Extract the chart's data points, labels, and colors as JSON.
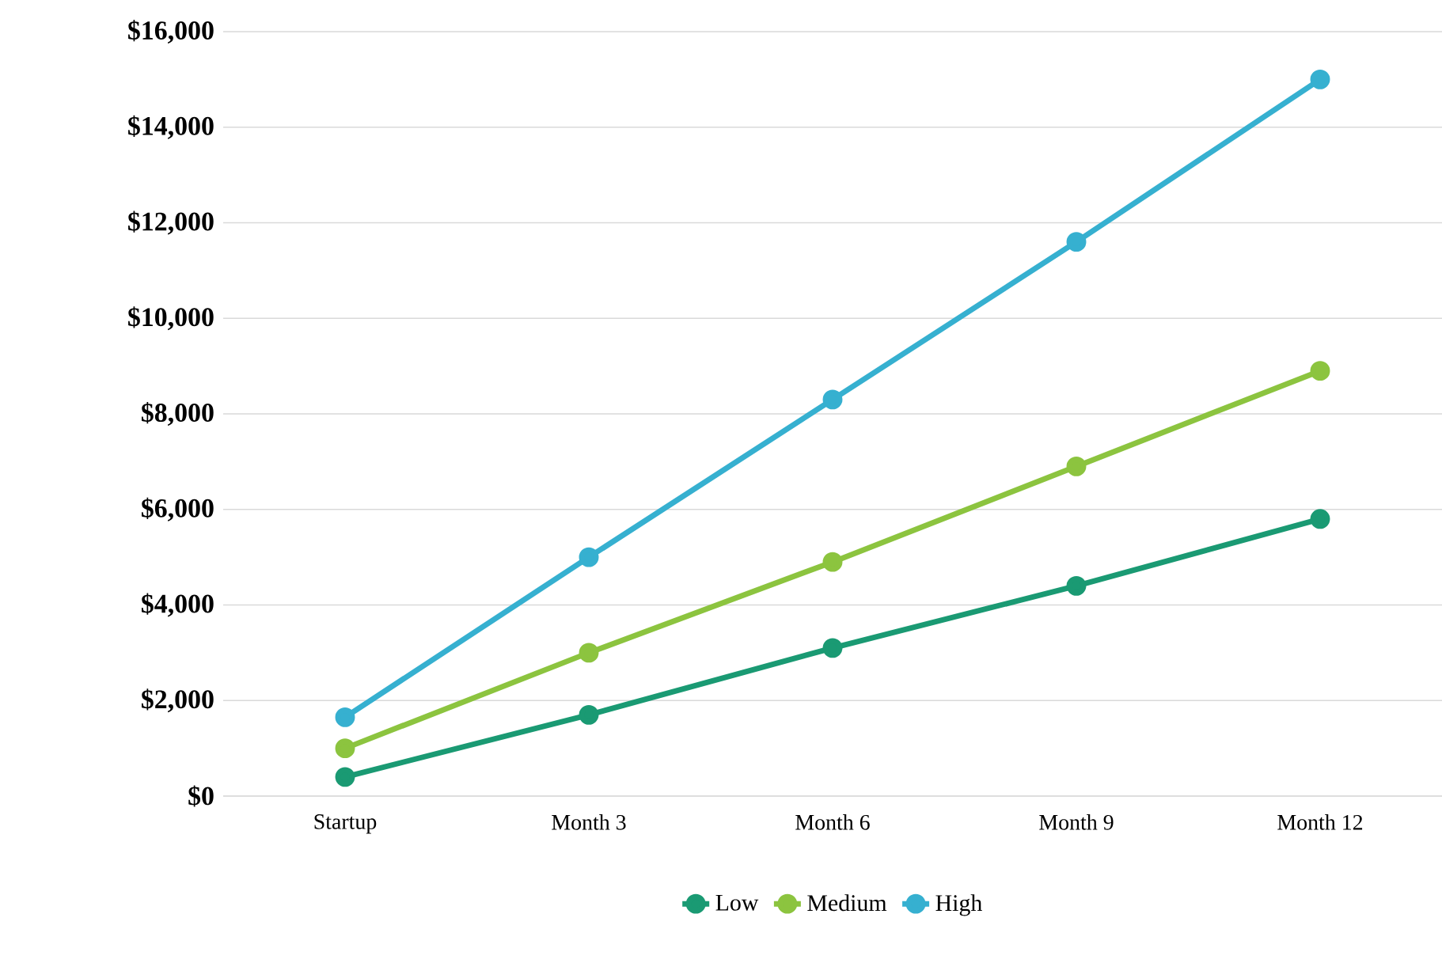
{
  "chart_data": {
    "type": "line",
    "categories": [
      "Startup",
      "Month 3",
      "Month 6",
      "Month 9",
      "Month 12"
    ],
    "series": [
      {
        "name": "Low",
        "color": "#1a9a73",
        "values": [
          400,
          1700,
          3100,
          4400,
          5800
        ]
      },
      {
        "name": "Medium",
        "color": "#8cc43f",
        "values": [
          1000,
          3000,
          4900,
          6900,
          8900
        ]
      },
      {
        "name": "High",
        "color": "#36b0d0",
        "values": [
          1650,
          5000,
          8300,
          11600,
          15000
        ]
      }
    ],
    "ylim": [
      0,
      16000
    ],
    "yticks": [
      {
        "value": 0,
        "label": "$0"
      },
      {
        "value": 2000,
        "label": "$2,000"
      },
      {
        "value": 4000,
        "label": "$4,000"
      },
      {
        "value": 6000,
        "label": "$6,000"
      },
      {
        "value": 8000,
        "label": "$8,000"
      },
      {
        "value": 10000,
        "label": "$10,000"
      },
      {
        "value": 12000,
        "label": "$12,000"
      },
      {
        "value": 14000,
        "label": "$14,000"
      },
      {
        "value": 16000,
        "label": "$16,000"
      }
    ],
    "grid": "y",
    "legend": "bottom",
    "marker": "circle",
    "line_style": "solid"
  }
}
